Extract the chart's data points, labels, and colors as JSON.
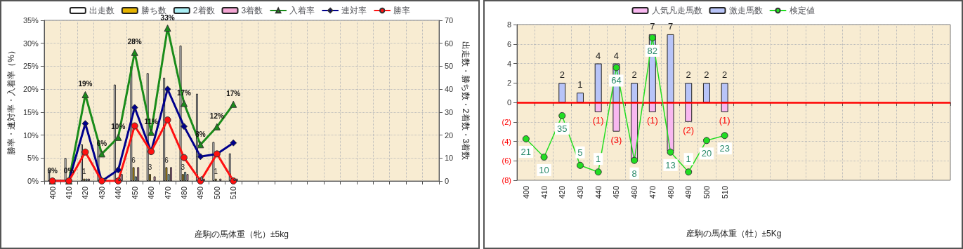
{
  "chart_data": [
    {
      "type": "bar",
      "xlabel": "産駒の馬体重（牝）±5kg",
      "ylabel": "勝率・連対率・入着率（%）",
      "y2label": "出走数・勝ち数・2着数・3着数",
      "categories": [
        "400",
        "410",
        "420",
        "430",
        "440",
        "450",
        "460",
        "470",
        "480",
        "490",
        "500",
        "510",
        null,
        null,
        null,
        null,
        null,
        null,
        null,
        null,
        null,
        null,
        null,
        null
      ],
      "series": [
        {
          "name": "出走数",
          "axis": "y2",
          "color": "#ffffff",
          "values": [
            5,
            10,
            16,
            17,
            42,
            50,
            47,
            45,
            59,
            38,
            17,
            12,
            null,
            null,
            null,
            null,
            null,
            null,
            null,
            null,
            null,
            null,
            null,
            null
          ]
        },
        {
          "name": "勝ち数",
          "axis": "y2",
          "color": "#e6b400",
          "values": [
            0,
            0,
            1,
            0,
            0,
            6,
            3,
            6,
            3,
            0,
            1,
            0,
            null,
            null,
            null,
            null,
            null,
            null,
            null,
            null,
            null,
            null,
            null,
            null
          ],
          "value_labels": [
            null,
            null,
            "1",
            null,
            null,
            "6",
            "3",
            "6",
            "3",
            null,
            "1",
            null,
            null,
            null,
            null,
            null,
            null,
            null,
            null,
            null,
            null,
            null,
            null,
            null
          ]
        },
        {
          "name": "2着数",
          "axis": "y2",
          "color": "#a8eef4",
          "values": [
            0,
            0,
            1,
            0,
            1,
            2,
            0,
            3,
            4,
            2,
            0,
            1,
            null,
            null,
            null,
            null,
            null,
            null,
            null,
            null,
            null,
            null,
            null,
            null
          ]
        },
        {
          "name": "3着数",
          "axis": "y2",
          "color": "#f4a6d4",
          "values": [
            0,
            0,
            1,
            1,
            3,
            6,
            2,
            6,
            3,
            1,
            1,
            1,
            null,
            null,
            null,
            null,
            null,
            null,
            null,
            null,
            null,
            null,
            null,
            null
          ]
        },
        {
          "name": "入着率",
          "type": "line",
          "marker": "triangle",
          "color": "#1a8c1a",
          "values": [
            0,
            0,
            18.8,
            5.9,
            9.5,
            28,
            10.6,
            33.3,
            16.9,
            7.9,
            11.8,
            16.7,
            null,
            null,
            null,
            null,
            null,
            null,
            null,
            null,
            null,
            null,
            null,
            null
          ],
          "value_labels": [
            "0%",
            "0%",
            "19%",
            "6%",
            "10%",
            "28%",
            "11%",
            "33%",
            "17%",
            "8%",
            "12%",
            "17%",
            null,
            null,
            null,
            null,
            null,
            null,
            null,
            null,
            null,
            null,
            null,
            null
          ]
        },
        {
          "name": "連対率",
          "type": "line",
          "marker": "diamond",
          "color": "#00008c",
          "values": [
            0,
            0,
            12.5,
            0,
            2.4,
            16,
            6.4,
            20,
            11.9,
            5.3,
            5.9,
            8.3,
            null,
            null,
            null,
            null,
            null,
            null,
            null,
            null,
            null,
            null,
            null,
            null
          ]
        },
        {
          "name": "勝率",
          "type": "line",
          "marker": "circle",
          "color": "#ff1010",
          "values": [
            0,
            0,
            6.3,
            0,
            0,
            12,
            6.4,
            13.3,
            5.1,
            0,
            5.9,
            0,
            null,
            null,
            null,
            null,
            null,
            null,
            null,
            null,
            null,
            null,
            null,
            null
          ]
        }
      ],
      "ylim": [
        0,
        35
      ],
      "yticks": [
        {
          "value": 0,
          "label": "0%"
        },
        {
          "value": 5,
          "label": "5%"
        },
        {
          "value": 10,
          "label": "10%"
        },
        {
          "value": 15,
          "label": "15%"
        },
        {
          "value": 20,
          "label": "20%"
        },
        {
          "value": 25,
          "label": "25%"
        },
        {
          "value": 30,
          "label": "30%"
        },
        {
          "value": 35,
          "label": "35%"
        }
      ],
      "y2lim": [
        0,
        70
      ],
      "y2ticks": [
        0,
        10,
        20,
        30,
        40,
        50,
        60,
        70
      ],
      "grid": true,
      "legend": "top",
      "line_style": "solid"
    },
    {
      "type": "bar",
      "xlabel": "産駒の馬体重（牡）±5Kg",
      "stacked": true,
      "categories": [
        "400",
        "410",
        "420",
        "430",
        "440",
        "450",
        "460",
        "470",
        "480",
        "490",
        "500",
        "510",
        null,
        null,
        null,
        null,
        null,
        null,
        null,
        null,
        null,
        null,
        null,
        null
      ],
      "series": [
        {
          "name": "人気凡走馬数",
          "color": "#f8b8f0",
          "values": [
            0,
            0,
            0,
            0,
            -1,
            -3,
            -6,
            -1,
            -5,
            -2,
            0,
            -1,
            null,
            null,
            null,
            null,
            null,
            null,
            null,
            null,
            null,
            null,
            null,
            null
          ],
          "value_labels": [
            null,
            null,
            null,
            null,
            "(1)",
            "(3)",
            null,
            "(1)",
            null,
            "(2)",
            null,
            "(1)",
            null,
            null,
            null,
            null,
            null,
            null,
            null,
            null,
            null,
            null,
            null,
            null
          ]
        },
        {
          "name": "激走馬数",
          "color": "#b8c4f8",
          "values": [
            0,
            0,
            2,
            1,
            4,
            4,
            2,
            7,
            7,
            2,
            2,
            2,
            null,
            null,
            null,
            null,
            null,
            null,
            null,
            null,
            null,
            null,
            null,
            null
          ],
          "value_labels": [
            null,
            null,
            "2",
            "1",
            "4",
            "4",
            "2",
            "7",
            "7",
            "2",
            "2",
            "2",
            null,
            null,
            null,
            null,
            null,
            null,
            null,
            null,
            null,
            null,
            null,
            null
          ]
        },
        {
          "name": "検定値",
          "type": "line",
          "axis": "y2",
          "marker": "circle",
          "color": "#22dd22",
          "values": [
            21,
            10,
            35,
            5,
            1,
            64,
            8,
            82,
            13,
            1,
            20,
            23,
            null,
            null,
            null,
            null,
            null,
            null,
            null,
            null,
            null,
            null,
            null,
            null
          ],
          "value_labels": [
            "21",
            "10",
            "35",
            "5",
            "1",
            "64",
            "8",
            "82",
            "13",
            "1",
            "20",
            "23",
            null,
            null,
            null,
            null,
            null,
            null,
            null,
            null,
            null,
            null,
            null,
            null
          ]
        }
      ],
      "ylim": [
        -8,
        8
      ],
      "yticks": [
        {
          "value": -8,
          "label": "(8)"
        },
        {
          "value": -6,
          "label": "(6)"
        },
        {
          "value": -4,
          "label": "(4)"
        },
        {
          "value": -2,
          "label": "(2)"
        },
        0,
        2,
        4,
        6,
        8
      ],
      "y2lim": [
        -4,
        90
      ],
      "ref_lines": [
        {
          "axis": "y",
          "value": 0,
          "color": "#ff0000"
        }
      ],
      "grid": true,
      "legend": "top",
      "line_style": "solid"
    }
  ]
}
